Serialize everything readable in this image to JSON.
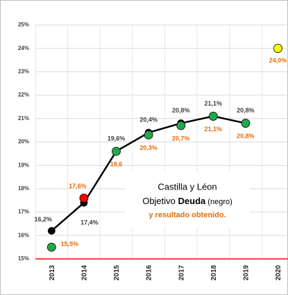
{
  "chart_data": {
    "type": "line",
    "categories": [
      "2013",
      "2014",
      "2015",
      "2016",
      "2017",
      "2018",
      "2019",
      "2020"
    ],
    "series": [
      {
        "color": "#000000",
        "values": [
          16.2,
          17.4,
          19.6,
          20.4,
          20.8,
          21.1,
          20.8,
          null
        ],
        "value_labels": [
          "16,2%",
          "17,4%",
          "19,6%",
          "20,4%",
          "20,8%",
          "21,1%",
          "20,8%",
          null
        ],
        "label_color": "#404040"
      },
      {
        "color": "none",
        "marker_colors": [
          "#21a84a",
          "#ff0000",
          "#21a84a",
          "#21a84a",
          "#21a84a",
          "#21a84a",
          "#21a84a",
          "#ffff00"
        ],
        "values": [
          15.5,
          17.6,
          19.6,
          20.3,
          20.7,
          21.1,
          20.8,
          24.0
        ],
        "value_labels": [
          "15,5%",
          "17,6%",
          "19,6",
          "20,3%",
          "20,7%",
          "21,1%",
          "20,8%",
          "24,0%"
        ],
        "label_color": "#e46c0a"
      }
    ],
    "ylim": [
      15,
      25
    ],
    "yticks": [
      {
        "value": 15,
        "label": "15%"
      },
      {
        "value": 16,
        "label": "16%"
      },
      {
        "value": 17,
        "label": "17%"
      },
      {
        "value": 18,
        "label": "18%"
      },
      {
        "value": 19,
        "label": "19%"
      },
      {
        "value": 20,
        "label": "20%"
      },
      {
        "value": 21,
        "label": "21%"
      },
      {
        "value": 22,
        "label": "22%"
      },
      {
        "value": 23,
        "label": "23%"
      },
      {
        "value": 24,
        "label": "24%"
      },
      {
        "value": 25,
        "label": "25%"
      }
    ],
    "grid": true,
    "annotation": {
      "line1": "Castilla y Léon",
      "line2a": "Objetivo ",
      "line2b": "Deuda",
      "line2c": " (negro)",
      "line3": "y resultado obtenido."
    }
  }
}
